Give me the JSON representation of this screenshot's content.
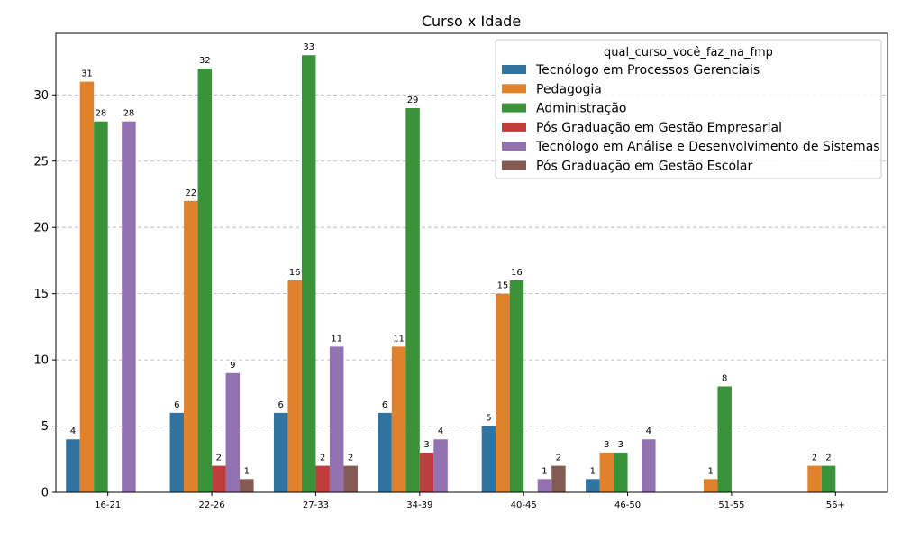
{
  "chart_data": {
    "type": "bar",
    "title": "Curso x Idade",
    "xlabel": "",
    "ylabel": "",
    "categories": [
      "16-21",
      "22-26",
      "27-33",
      "34-39",
      "40-45",
      "46-50",
      "51-55",
      "56+"
    ],
    "ylim": [
      0,
      34.65
    ],
    "yticks": [
      0,
      5,
      10,
      15,
      20,
      25,
      30
    ],
    "grid": "y-dashed",
    "legend": {
      "title": "qual_curso_você_faz_na_fmp",
      "placement": "top-right"
    },
    "series": [
      {
        "name": "Tecnólogo em Processos Gerenciais",
        "color": "#3274a1",
        "values": [
          4,
          6,
          6,
          6,
          5,
          1,
          null,
          null
        ]
      },
      {
        "name": "Pedagogia",
        "color": "#e1812c",
        "values": [
          31,
          22,
          16,
          11,
          15,
          3,
          1,
          2
        ]
      },
      {
        "name": "Administração",
        "color": "#3a923a",
        "values": [
          28,
          32,
          33,
          29,
          16,
          3,
          8,
          2
        ]
      },
      {
        "name": "Pós Graduação em Gestão Empresarial",
        "color": "#c03d3e",
        "values": [
          null,
          2,
          2,
          3,
          null,
          null,
          null,
          null
        ]
      },
      {
        "name": "Tecnólogo em Análise e Desenvolvimento de Sistemas",
        "color": "#9372b2",
        "values": [
          28,
          9,
          11,
          4,
          1,
          4,
          null,
          null
        ]
      },
      {
        "name": "Pós Graduação em Gestão Escolar",
        "color": "#845b53",
        "values": [
          null,
          1,
          2,
          null,
          2,
          null,
          null,
          null
        ]
      }
    ]
  }
}
